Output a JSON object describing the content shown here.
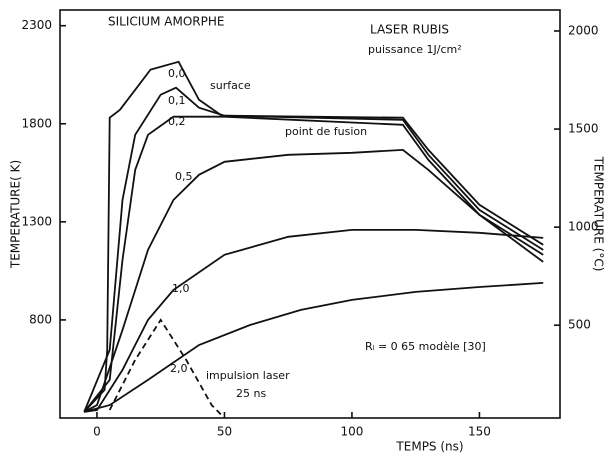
{
  "chart_data": {
    "type": "line",
    "title": "SILICIUM AMORPHE",
    "subtitle": "LASER RUBIS",
    "power": "puissance 1J/cm²",
    "x_label": "TEMPS (ns)",
    "y_label": "TEMPERATURE( K)",
    "y2_label": "TEMPERATURE (°C)",
    "annotations": [
      "surface",
      "point de fusion",
      "Rₗ = 0 65  modèle [30]",
      "25 ns"
    ],
    "xlim": [
      -14.5,
      181.6
    ],
    "xticks": [
      0,
      50,
      100,
      150
    ],
    "ylim": [
      300,
      2380
    ],
    "yticks": [
      800,
      1300,
      1800,
      2300
    ],
    "y2lim": [
      27,
      2107
    ],
    "y2ticks": [
      500,
      1000,
      1500,
      2000
    ],
    "color": "#111111",
    "series": [
      {
        "name": "0,0",
        "x": [
          -5,
          3,
          4,
          5,
          9,
          15,
          21,
          32,
          40,
          49,
          120,
          130,
          150,
          175
        ],
        "values": [
          331,
          443,
          647,
          1831,
          1871,
          1973,
          2076,
          2116,
          1922,
          1841,
          1831,
          1667,
          1387,
          1183
        ]
      },
      {
        "name": "0,1",
        "x": [
          -5,
          5,
          10,
          15,
          25,
          31,
          40,
          50,
          120,
          130,
          150,
          175
        ],
        "values": [
          331,
          647,
          1412,
          1744,
          1948,
          1984,
          1882,
          1841,
          1820,
          1642,
          1361,
          1157
        ]
      },
      {
        "name": "0,2",
        "x": [
          -5,
          5,
          10,
          15,
          20,
          30,
          50,
          120,
          130,
          150,
          175
        ],
        "values": [
          331,
          494,
          1106,
          1565,
          1744,
          1836,
          1836,
          1795,
          1616,
          1336,
          1132
        ]
      },
      {
        "name": "0,5",
        "x": [
          -5,
          0,
          10,
          20,
          30,
          40,
          50,
          75,
          100,
          120,
          130,
          150,
          175
        ],
        "values": [
          331,
          366,
          749,
          1157,
          1412,
          1540,
          1606,
          1642,
          1652,
          1667,
          1565,
          1336,
          1096
        ]
      },
      {
        "name": "1,0",
        "x": [
          -5,
          0,
          10,
          20,
          30,
          50,
          75,
          100,
          125,
          150,
          175
        ],
        "values": [
          331,
          341,
          545,
          800,
          953,
          1132,
          1224,
          1259,
          1259,
          1244,
          1218
        ]
      },
      {
        "name": "2,0",
        "x": [
          -5,
          5,
          20,
          40,
          60,
          80,
          100,
          125,
          150,
          175
        ],
        "values": [
          331,
          366,
          494,
          672,
          774,
          851,
          902,
          943,
          968,
          989
        ]
      },
      {
        "name": "impulsion laser",
        "dashed": true,
        "x": [
          5,
          15,
          25,
          35,
          45,
          50
        ],
        "values": [
          341,
          596,
          800,
          596,
          366,
          300
        ]
      }
    ]
  }
}
